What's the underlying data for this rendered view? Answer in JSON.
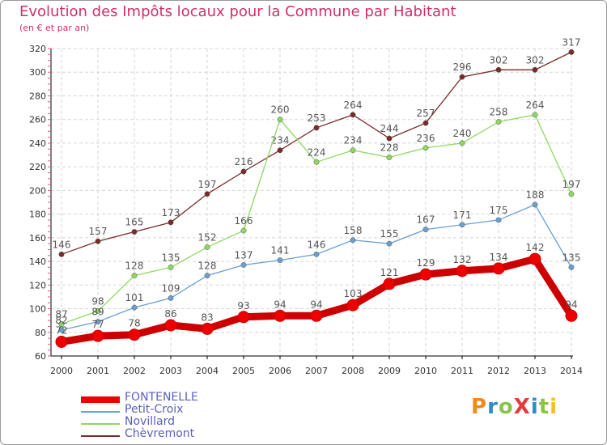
{
  "header": {
    "title": "Evolution des Impôts locaux pour la Commune par Habitant",
    "subtitle": "(en € et par an)"
  },
  "logo": {
    "text": "ProXiti",
    "colors": [
      "#f28a1a",
      "#2f8ac9",
      "#8bc34a",
      "#e23b3b",
      "#2f8ac9",
      "#8bc34a",
      "#f2c21a"
    ]
  },
  "chart_data": {
    "type": "line",
    "title": "Evolution des Impôts locaux pour la Commune par Habitant",
    "subtitle": "(en € et par an)",
    "xlabel": "",
    "ylabel": "",
    "categories": [
      "2000",
      "2001",
      "2002",
      "2003",
      "2004",
      "2005",
      "2006",
      "2007",
      "2008",
      "2009",
      "2010",
      "2011",
      "2012",
      "2013",
      "2014"
    ],
    "ylim": [
      60,
      320
    ],
    "yticks": [
      60,
      80,
      100,
      120,
      140,
      160,
      180,
      200,
      220,
      240,
      260,
      280,
      300,
      320
    ],
    "grid": true,
    "legend_position": "bottom-left",
    "series": [
      {
        "name": "Chèvremont",
        "color": "#7a2a2a",
        "values": [
          146,
          157,
          165,
          173,
          197,
          216,
          234,
          253,
          264,
          244,
          257,
          296,
          302,
          302,
          317
        ]
      },
      {
        "name": "Novillard",
        "color": "#8ed860",
        "values": [
          87,
          98,
          128,
          135,
          152,
          166,
          260,
          224,
          234,
          228,
          236,
          240,
          258,
          264,
          197
        ]
      },
      {
        "name": "Petit-Croix",
        "color": "#6a9fd0",
        "values": [
          82,
          89,
          101,
          109,
          128,
          137,
          141,
          146,
          158,
          155,
          167,
          171,
          175,
          188,
          135
        ]
      },
      {
        "name": "FONTENELLE",
        "color": "#ee0000",
        "values": [
          72,
          77,
          78,
          86,
          83,
          93,
          94,
          94,
          103,
          121,
          129,
          132,
          134,
          142,
          94
        ]
      }
    ],
    "legend": [
      "FONTENELLE",
      "Petit-Croix",
      "Novillard",
      "Chèvremont"
    ]
  }
}
